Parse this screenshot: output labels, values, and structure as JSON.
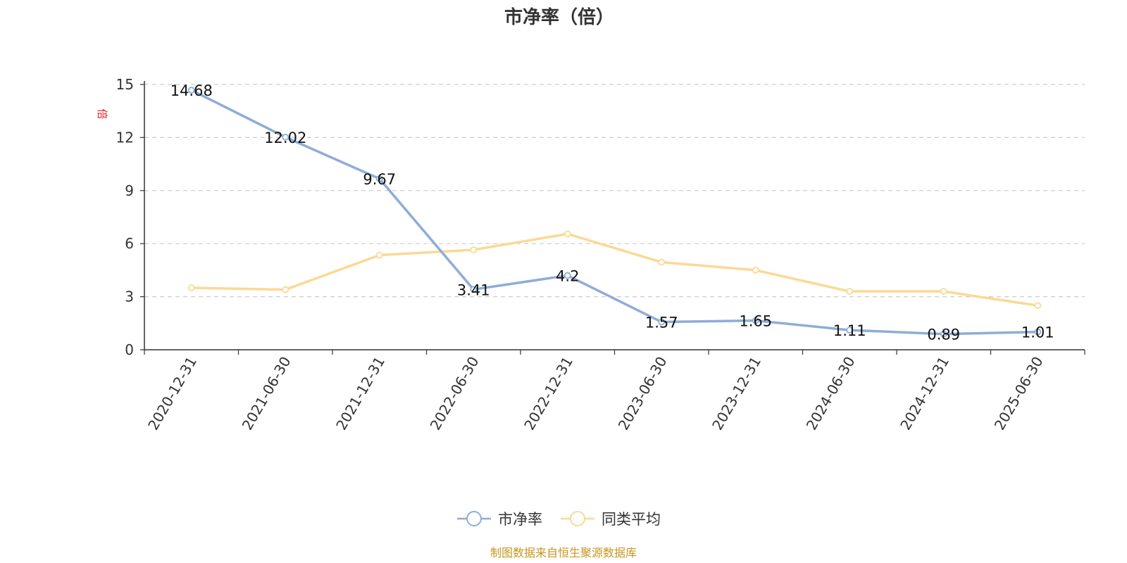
{
  "chart_data": {
    "type": "line",
    "title": "市净率（倍）",
    "ylabel": "倍",
    "ylim": [
      0,
      15
    ],
    "yticks": [
      0,
      3,
      6,
      9,
      12,
      15
    ],
    "grid": true,
    "legend_position": "bottom",
    "categories": [
      "2020-12-31",
      "2021-06-30",
      "2021-12-31",
      "2022-06-30",
      "2022-12-31",
      "2023-06-30",
      "2023-12-31",
      "2024-06-30",
      "2024-12-31",
      "2025-06-30"
    ],
    "series": [
      {
        "name": "市净率",
        "color": "#8eadd6",
        "values": [
          14.68,
          12.02,
          9.67,
          3.41,
          4.2,
          1.57,
          1.65,
          1.11,
          0.89,
          1.01
        ],
        "data_labels": [
          "14.68",
          "12.02",
          "9.67",
          "3.41",
          "4.2",
          "1.57",
          "1.65",
          "1.11",
          "0.89",
          "1.01"
        ]
      },
      {
        "name": "同类平均",
        "color": "#fbd994",
        "values": [
          3.5,
          3.4,
          5.35,
          5.65,
          6.55,
          4.95,
          4.5,
          3.3,
          3.3,
          2.5
        ]
      }
    ]
  },
  "source_note": "制图数据来自恒生聚源数据库"
}
